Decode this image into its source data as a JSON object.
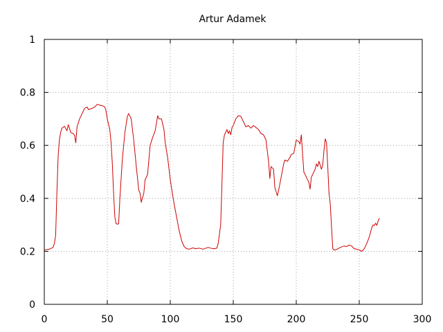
{
  "chart_data": {
    "type": "line",
    "title": "Artur Adamek",
    "xlabel": "",
    "ylabel": "",
    "xlim": [
      0,
      300
    ],
    "ylim": [
      0,
      1
    ],
    "x_ticks": [
      0,
      50,
      100,
      150,
      200,
      250,
      300
    ],
    "x_tick_labels": [
      "0",
      "50",
      "100",
      "150",
      "200",
      "250",
      "300"
    ],
    "y_ticks": [
      0,
      0.2,
      0.4,
      0.6,
      0.8,
      1
    ],
    "y_tick_labels": [
      "0",
      "0.2",
      "0.4",
      "0.6",
      "0.8",
      "1"
    ],
    "grid": true,
    "series": [
      {
        "color": "#cc0000",
        "points": [
          [
            0,
            0.205
          ],
          [
            4,
            0.208
          ],
          [
            7,
            0.215
          ],
          [
            8,
            0.23
          ],
          [
            9,
            0.26
          ],
          [
            10,
            0.42
          ],
          [
            11,
            0.56
          ],
          [
            12,
            0.62
          ],
          [
            13,
            0.65
          ],
          [
            14,
            0.665
          ],
          [
            16,
            0.672
          ],
          [
            18,
            0.655
          ],
          [
            19,
            0.678
          ],
          [
            20,
            0.665
          ],
          [
            21,
            0.648
          ],
          [
            23,
            0.645
          ],
          [
            24,
            0.638
          ],
          [
            25,
            0.61
          ],
          [
            26,
            0.67
          ],
          [
            28,
            0.7
          ],
          [
            30,
            0.72
          ],
          [
            32,
            0.74
          ],
          [
            34,
            0.745
          ],
          [
            35,
            0.735
          ],
          [
            38,
            0.74
          ],
          [
            40,
            0.745
          ],
          [
            42,
            0.755
          ],
          [
            44,
            0.752
          ],
          [
            46,
            0.75
          ],
          [
            48,
            0.745
          ],
          [
            49,
            0.73
          ],
          [
            50,
            0.7
          ],
          [
            51,
            0.68
          ],
          [
            52,
            0.66
          ],
          [
            53,
            0.61
          ],
          [
            54,
            0.53
          ],
          [
            55,
            0.42
          ],
          [
            56,
            0.33
          ],
          [
            57,
            0.305
          ],
          [
            58,
            0.302
          ],
          [
            59,
            0.305
          ],
          [
            60,
            0.4
          ],
          [
            62,
            0.55
          ],
          [
            64,
            0.65
          ],
          [
            66,
            0.71
          ],
          [
            67,
            0.72
          ],
          [
            69,
            0.7
          ],
          [
            71,
            0.62
          ],
          [
            73,
            0.52
          ],
          [
            75,
            0.43
          ],
          [
            76,
            0.42
          ],
          [
            77,
            0.385
          ],
          [
            79,
            0.42
          ],
          [
            80,
            0.47
          ],
          [
            82,
            0.49
          ],
          [
            84,
            0.6
          ],
          [
            86,
            0.63
          ],
          [
            88,
            0.655
          ],
          [
            90,
            0.712
          ],
          [
            91,
            0.7
          ],
          [
            93,
            0.7
          ],
          [
            95,
            0.66
          ],
          [
            96,
            0.61
          ],
          [
            98,
            0.55
          ],
          [
            100,
            0.47
          ],
          [
            102,
            0.41
          ],
          [
            103,
            0.38
          ],
          [
            105,
            0.33
          ],
          [
            107,
            0.28
          ],
          [
            109,
            0.24
          ],
          [
            111,
            0.218
          ],
          [
            113,
            0.21
          ],
          [
            115,
            0.208
          ],
          [
            118,
            0.213
          ],
          [
            120,
            0.21
          ],
          [
            123,
            0.212
          ],
          [
            126,
            0.208
          ],
          [
            130,
            0.215
          ],
          [
            133,
            0.211
          ],
          [
            135,
            0.21
          ],
          [
            137,
            0.212
          ],
          [
            138,
            0.23
          ],
          [
            140,
            0.3
          ],
          [
            141,
            0.45
          ],
          [
            142,
            0.61
          ],
          [
            143,
            0.64
          ],
          [
            144,
            0.65
          ],
          [
            145,
            0.66
          ],
          [
            146,
            0.645
          ],
          [
            147,
            0.655
          ],
          [
            148,
            0.64
          ],
          [
            149,
            0.668
          ],
          [
            150,
            0.675
          ],
          [
            152,
            0.7
          ],
          [
            154,
            0.712
          ],
          [
            156,
            0.71
          ],
          [
            158,
            0.69
          ],
          [
            160,
            0.67
          ],
          [
            162,
            0.675
          ],
          [
            164,
            0.665
          ],
          [
            166,
            0.675
          ],
          [
            168,
            0.668
          ],
          [
            170,
            0.66
          ],
          [
            172,
            0.645
          ],
          [
            174,
            0.64
          ],
          [
            176,
            0.62
          ],
          [
            177,
            0.58
          ],
          [
            178,
            0.54
          ],
          [
            179,
            0.475
          ],
          [
            180,
            0.52
          ],
          [
            182,
            0.51
          ],
          [
            183,
            0.44
          ],
          [
            185,
            0.41
          ],
          [
            186,
            0.43
          ],
          [
            188,
            0.48
          ],
          [
            190,
            0.53
          ],
          [
            191,
            0.545
          ],
          [
            193,
            0.54
          ],
          [
            195,
            0.555
          ],
          [
            196,
            0.565
          ],
          [
            198,
            0.57
          ],
          [
            200,
            0.62
          ],
          [
            202,
            0.615
          ],
          [
            203,
            0.605
          ],
          [
            204,
            0.64
          ],
          [
            205,
            0.57
          ],
          [
            206,
            0.5
          ],
          [
            208,
            0.48
          ],
          [
            210,
            0.46
          ],
          [
            211,
            0.435
          ],
          [
            212,
            0.48
          ],
          [
            214,
            0.5
          ],
          [
            215,
            0.51
          ],
          [
            216,
            0.53
          ],
          [
            217,
            0.52
          ],
          [
            218,
            0.54
          ],
          [
            220,
            0.51
          ],
          [
            221,
            0.525
          ],
          [
            222,
            0.58
          ],
          [
            223,
            0.625
          ],
          [
            224,
            0.61
          ],
          [
            225,
            0.52
          ],
          [
            226,
            0.42
          ],
          [
            227,
            0.38
          ],
          [
            228,
            0.29
          ],
          [
            229,
            0.21
          ],
          [
            230,
            0.205
          ],
          [
            232,
            0.207
          ],
          [
            235,
            0.215
          ],
          [
            238,
            0.22
          ],
          [
            240,
            0.218
          ],
          [
            242,
            0.224
          ],
          [
            244,
            0.22
          ],
          [
            246,
            0.21
          ],
          [
            248,
            0.208
          ],
          [
            250,
            0.205
          ],
          [
            252,
            0.2
          ],
          [
            254,
            0.21
          ],
          [
            256,
            0.23
          ],
          [
            258,
            0.255
          ],
          [
            260,
            0.29
          ],
          [
            261,
            0.3
          ],
          [
            262,
            0.298
          ],
          [
            263,
            0.306
          ],
          [
            264,
            0.298
          ],
          [
            265,
            0.315
          ],
          [
            266,
            0.325
          ]
        ]
      }
    ]
  }
}
